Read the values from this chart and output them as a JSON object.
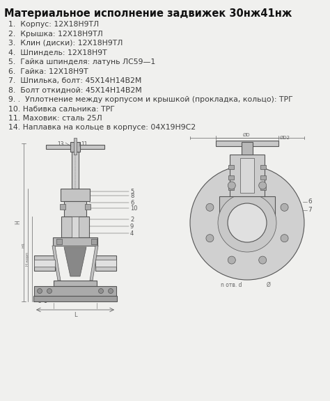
{
  "title": "Материальное исполнение задвижек 30нж41нж",
  "items": [
    "1.  Корпус: 12Х18Н9ТЛ",
    "2.  Крышка: 12Х18Н9ТЛ",
    "3.  Клин (диски): 12Х18Н9ТЛ",
    "4.  Шпиндель: 12Х18Н9Т",
    "5.  Гайка шпинделя: латунь ЛС59—1",
    "6.  Гайка: 12Х18Н9Т",
    "7.  Шпилька, болт: 45Х14Н14В2М",
    "8.  Болт откидной: 45Х14Н14В2М",
    "9. .  Уплотнение между корпусом и крышкой (прокладка, кольцо): ТРГ",
    "10. Набивка сальника: ТРГ",
    "11. Маховик: сталь 25Л",
    "14. Наплавка на кольце в корпусе: 04Х19Н9С2"
  ],
  "bg_color": "#f0f0ee",
  "text_color": "#3a3a3a",
  "title_color": "#111111",
  "lc": "#555555",
  "dim_color": "#666666",
  "title_fontsize": 10.5,
  "item_fontsize": 7.8,
  "fig_width": 4.74,
  "fig_height": 5.76
}
